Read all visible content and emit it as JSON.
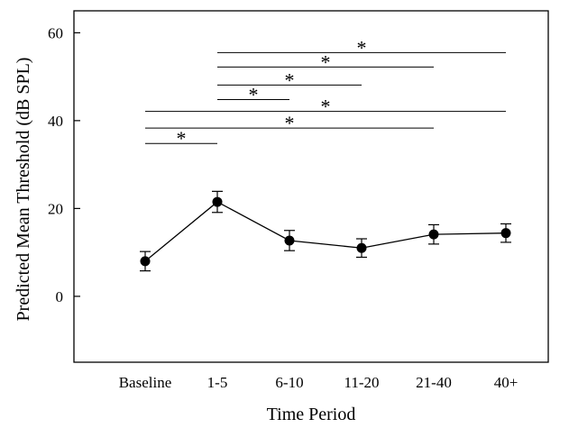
{
  "chart_data": {
    "type": "line",
    "title": "",
    "xlabel": "Time Period",
    "ylabel": "Predicted Mean Threshold (dB SPL)",
    "categories": [
      "Baseline",
      "1-5",
      "6-10",
      "11-20",
      "21-40",
      "40+"
    ],
    "values": [
      8.0,
      21.5,
      12.7,
      11.0,
      14.1,
      14.4
    ],
    "error_bars": [
      2.2,
      2.4,
      2.3,
      2.1,
      2.2,
      2.1
    ],
    "ylim": [
      -15,
      65
    ],
    "yticks": [
      0,
      20,
      40,
      60
    ],
    "grid": false,
    "marker": "filled-circle",
    "line_color": "#000000",
    "significance": {
      "marker": "*",
      "comparisons": [
        {
          "from": "Baseline",
          "to": "1-5",
          "y": 34.8
        },
        {
          "from": "Baseline",
          "to": "21-40",
          "y": 38.3
        },
        {
          "from": "Baseline",
          "to": "40+",
          "y": 42.1
        },
        {
          "from": "1-5",
          "to": "6-10",
          "y": 44.8
        },
        {
          "from": "1-5",
          "to": "11-20",
          "y": 48.1
        },
        {
          "from": "1-5",
          "to": "21-40",
          "y": 52.2
        },
        {
          "from": "1-5",
          "to": "40+",
          "y": 55.5
        }
      ]
    }
  }
}
